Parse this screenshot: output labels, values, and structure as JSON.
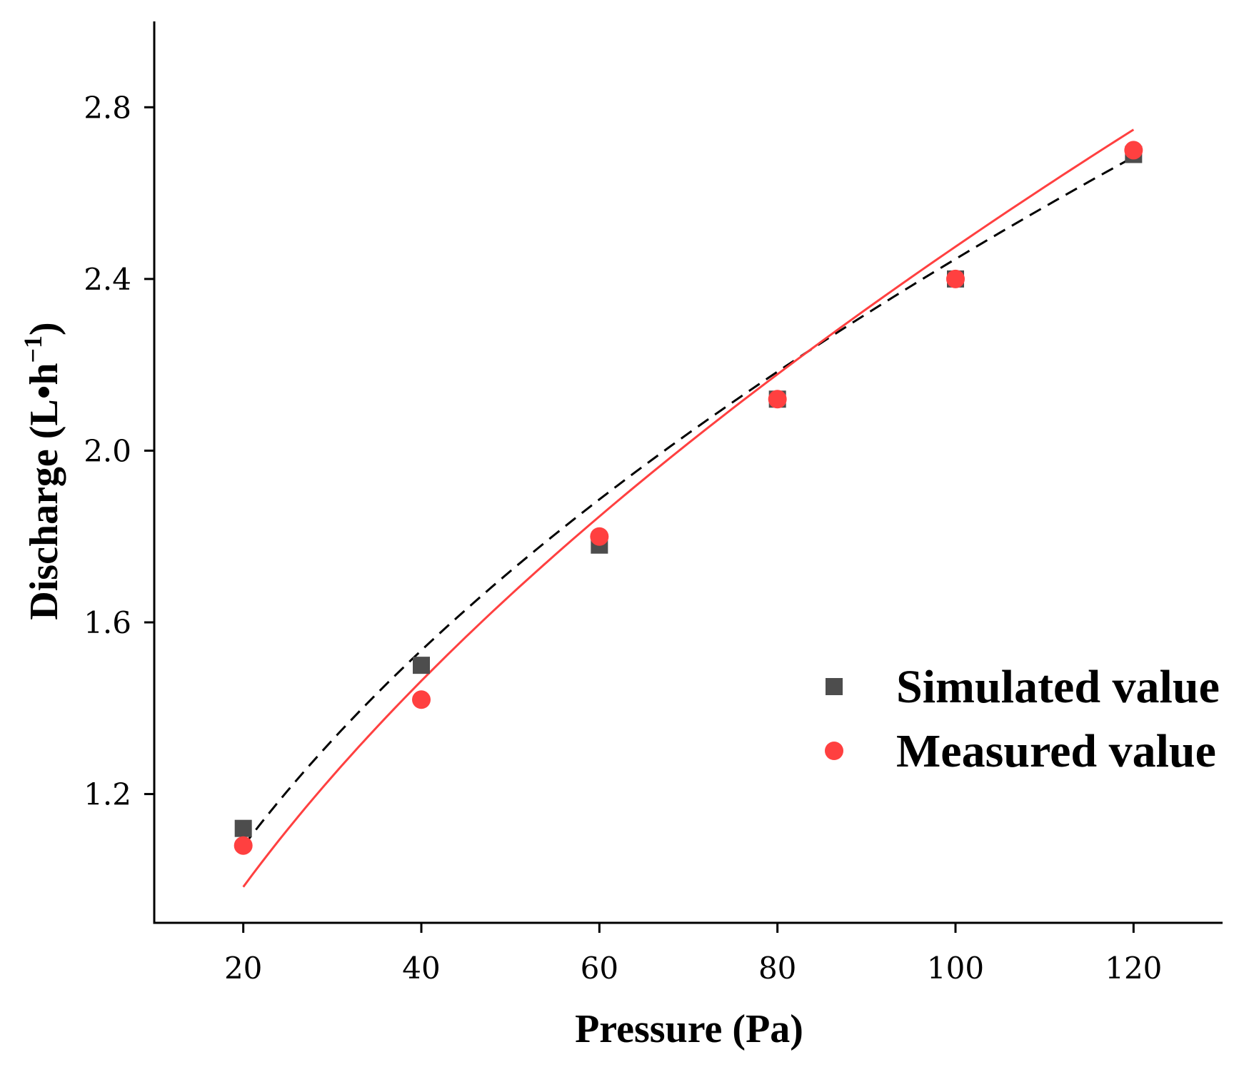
{
  "chart_data": {
    "type": "scatter",
    "xlabel": "Pressure (Pa)",
    "ylabel_main": "Discharge (L•h",
    "ylabel_sup": "−1",
    "ylabel_close": ")",
    "xlim": [
      10,
      130
    ],
    "ylim": [
      0.9,
      3.0
    ],
    "xticks": [
      20,
      40,
      60,
      80,
      100,
      120
    ],
    "xtick_labels": [
      "20",
      "40",
      "60",
      "80",
      "100",
      "120"
    ],
    "yticks": [
      1.2,
      1.6,
      2.0,
      2.4,
      2.8
    ],
    "ytick_labels": [
      "1.2",
      "1.6",
      "2.0",
      "2.4",
      "2.8"
    ],
    "grid": false,
    "legend_position": "center-right",
    "series": [
      {
        "name": "Simulated value",
        "marker": "square",
        "color": "#4d4d4d",
        "x": [
          20,
          40,
          60,
          80,
          100,
          120
        ],
        "y": [
          1.12,
          1.5,
          1.78,
          2.12,
          2.4,
          2.69
        ],
        "fit_line": {
          "style": "dashed",
          "color": "#000000",
          "a": 0.23486,
          "b": 0.50886
        }
      },
      {
        "name": "Measured value",
        "marker": "circle",
        "color": "#ff4040",
        "x": [
          20,
          40,
          60,
          80,
          100,
          120
        ],
        "y": [
          1.08,
          1.42,
          1.8,
          2.12,
          2.4,
          2.7
        ],
        "fit_line": {
          "style": "solid",
          "color": "#ff4040",
          "a": 0.17656,
          "b": 0.57336
        }
      }
    ]
  }
}
